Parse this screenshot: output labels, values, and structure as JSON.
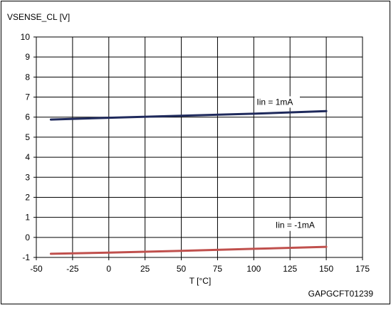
{
  "chart_data": {
    "type": "line",
    "ylabel": "VSENSE_CL [V]",
    "xlabel": "T [°C]",
    "xlim": [
      -50,
      175
    ],
    "ylim": [
      -1,
      10
    ],
    "x_ticks": [
      -50,
      -25,
      0,
      25,
      50,
      75,
      100,
      125,
      150,
      175
    ],
    "y_ticks": [
      -1,
      0,
      1,
      2,
      3,
      4,
      5,
      6,
      7,
      8,
      9,
      10
    ],
    "grid": true,
    "series": [
      {
        "name": "Iin = 1mA",
        "color": "#1f2a5c",
        "x": [
          -40,
          0,
          50,
          100,
          150
        ],
        "y": [
          5.88,
          5.97,
          6.07,
          6.17,
          6.3
        ]
      },
      {
        "name": "Iin = -1mA",
        "color": "#c0504d",
        "x": [
          -40,
          0,
          50,
          100,
          150
        ],
        "y": [
          -0.82,
          -0.76,
          -0.67,
          -0.57,
          -0.47
        ]
      }
    ],
    "annotations": [
      {
        "text": "Iin = 1mA",
        "x": 102,
        "y": 6.65
      },
      {
        "text": "Iin = -1mA",
        "x": 115,
        "y": 0.5
      }
    ],
    "watermark": "GAPGCFT01239"
  }
}
